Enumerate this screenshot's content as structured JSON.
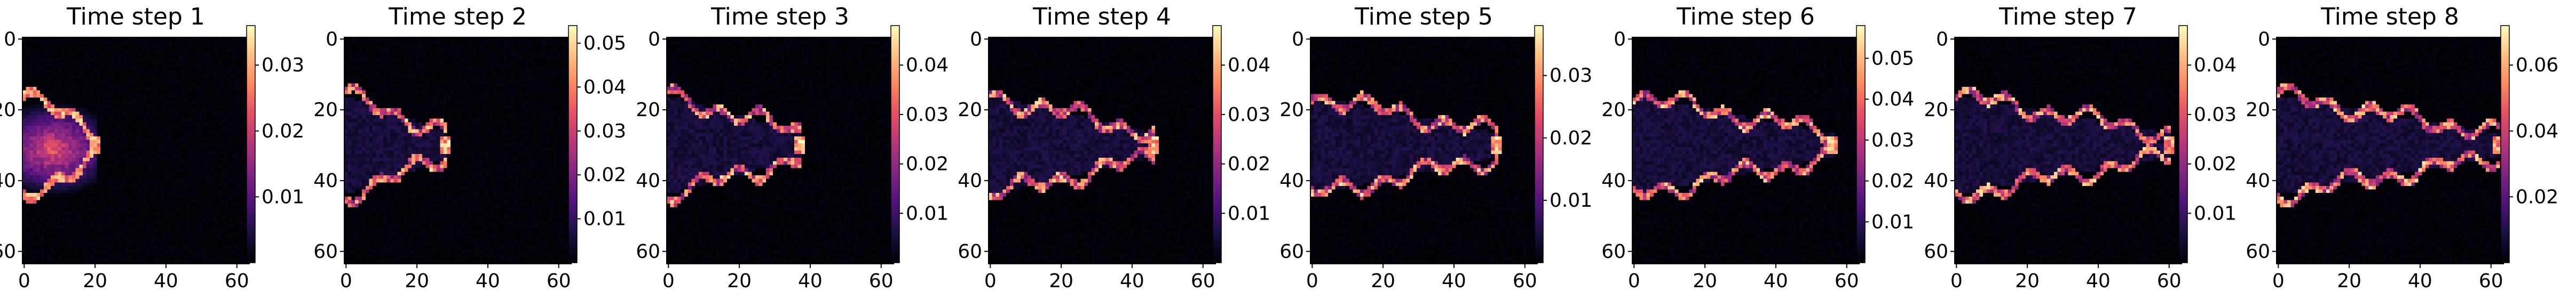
{
  "chart_data": {
    "type": "heatmap",
    "colormap": "magma",
    "grid": false,
    "colorbar_position": "right",
    "x_ticks": [
      0,
      20,
      40,
      60
    ],
    "y_ticks": [
      0,
      20,
      40,
      60
    ],
    "xlim": [
      0,
      64
    ],
    "ylim": [
      64,
      0
    ],
    "panels": [
      {
        "title": "Time step 1",
        "colorbar_range": [
          0,
          0.036
        ],
        "colorbar_ticks": [
          "0.01",
          "0.02",
          "0.03"
        ],
        "front_x": 20
      },
      {
        "title": "Time step 2",
        "colorbar_range": [
          0,
          0.054
        ],
        "colorbar_ticks": [
          "0.01",
          "0.02",
          "0.03",
          "0.04",
          "0.05"
        ],
        "front_x": 28
      },
      {
        "title": "Time step 3",
        "colorbar_range": [
          0,
          0.048
        ],
        "colorbar_ticks": [
          "0.01",
          "0.02",
          "0.03",
          "0.04"
        ],
        "front_x": 37
      },
      {
        "title": "Time step 4",
        "colorbar_range": [
          0,
          0.048
        ],
        "colorbar_ticks": [
          "0.01",
          "0.02",
          "0.03",
          "0.04"
        ],
        "front_x": 46
      },
      {
        "title": "Time step 5",
        "colorbar_range": [
          0,
          0.038
        ],
        "colorbar_ticks": [
          "0.01",
          "0.02",
          "0.03"
        ],
        "front_x": 52
      },
      {
        "title": "Time step 6",
        "colorbar_range": [
          0,
          0.058
        ],
        "colorbar_ticks": [
          "0.01",
          "0.02",
          "0.03",
          "0.04",
          "0.05"
        ],
        "front_x": 56
      },
      {
        "title": "Time step 7",
        "colorbar_range": [
          0,
          0.048
        ],
        "colorbar_ticks": [
          "0.01",
          "0.02",
          "0.03",
          "0.04"
        ],
        "front_x": 60
      },
      {
        "title": "Time step 8",
        "colorbar_range": [
          0,
          0.072
        ],
        "colorbar_ticks": [
          "0.02",
          "0.04",
          "0.06"
        ],
        "front_x": 62
      }
    ]
  }
}
